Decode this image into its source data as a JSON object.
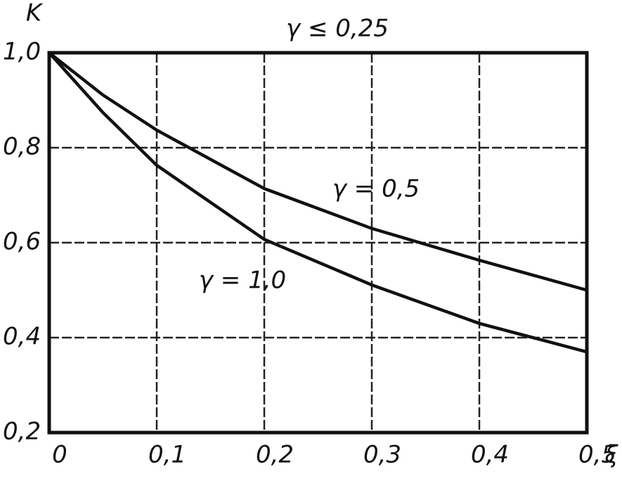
{
  "chart_data": {
    "type": "line",
    "x_label": "ξ",
    "y_label": "K",
    "x": [
      0,
      0.05,
      0.1,
      0.2,
      0.3,
      0.4,
      0.5
    ],
    "series": [
      {
        "name": "γ ≤ 0,25",
        "color": "#111111",
        "values": [
          1.0,
          1.0,
          1.0,
          1.0,
          1.0,
          1.0,
          1.0
        ]
      },
      {
        "name": "γ = 0,5",
        "color": "#111111",
        "values": [
          1.0,
          0.911,
          0.837,
          0.714,
          0.63,
          0.563,
          0.5
        ]
      },
      {
        "name": "γ = 1,0",
        "color": "#111111",
        "values": [
          1.0,
          0.874,
          0.763,
          0.607,
          0.511,
          0.43,
          0.37
        ]
      }
    ],
    "xlim": [
      0,
      0.5
    ],
    "ylim": [
      0.2,
      1.0
    ],
    "xticks": [
      0,
      {
        "value": 0.1,
        "label": "0,1"
      },
      {
        "value": 0.2,
        "label": "0,2"
      },
      {
        "value": 0.3,
        "label": "0,3"
      },
      {
        "value": 0.4,
        "label": "0,4"
      },
      {
        "value": 0.5,
        "label": "0,5"
      }
    ],
    "yticks": [
      {
        "value": 0.2,
        "label": "0,2"
      },
      {
        "value": 0.4,
        "label": "0,4"
      },
      {
        "value": 0.6,
        "label": "0,6"
      },
      {
        "value": 0.8,
        "label": "0,8"
      },
      {
        "value": 1.0,
        "label": "1,0"
      }
    ],
    "grid": true
  }
}
